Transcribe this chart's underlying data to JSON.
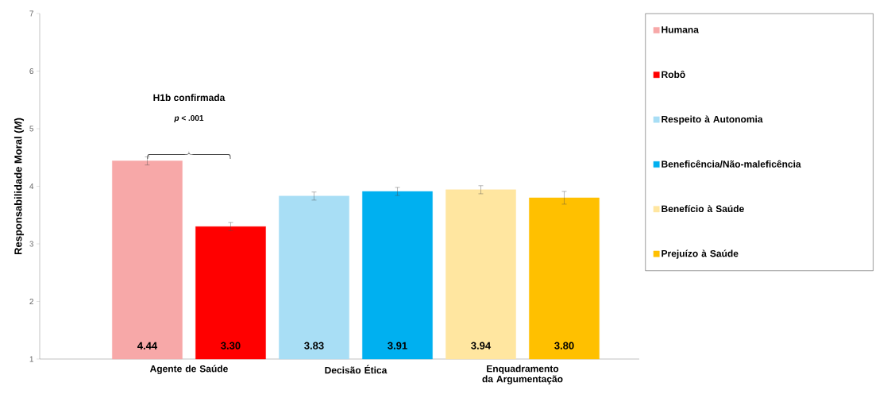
{
  "chart_data": {
    "type": "bar",
    "ylabel": "Responsabilidade Moral (*M*)",
    "categories": [
      "Agente de Saúde",
      "Decisão Ética",
      "Enquadramento da Argumentação"
    ],
    "ylim": [
      1,
      7
    ],
    "yticks": [
      1,
      2,
      3,
      4,
      5,
      6,
      7
    ],
    "grid": false,
    "legend": "right",
    "series": [
      {
        "name": "Humana",
        "color": "#f7a8a8",
        "values": [
          4.44,
          null,
          null
        ],
        "errors": [
          0.07,
          null,
          null
        ],
        "value_labels": [
          "4.44",
          null,
          null
        ]
      },
      {
        "name": "Robô",
        "color": "#ff0000",
        "values": [
          3.3,
          null,
          null
        ],
        "errors": [
          0.07,
          null,
          null
        ],
        "value_labels": [
          "3.30",
          null,
          null
        ]
      },
      {
        "name": "Respeito à Autonomia",
        "color": "#a8def5",
        "values": [
          null,
          3.83,
          null
        ],
        "errors": [
          null,
          0.07,
          null
        ],
        "value_labels": [
          null,
          "3.83",
          null
        ]
      },
      {
        "name": "Beneficência/Não-maleficência",
        "color": "#00b0f0",
        "values": [
          null,
          3.91,
          null
        ],
        "errors": [
          null,
          0.07,
          null
        ],
        "value_labels": [
          null,
          "3.91",
          null
        ]
      },
      {
        "name": "Benefício à Saúde",
        "color": "#ffe6a0",
        "values": [
          null,
          null,
          3.94
        ],
        "errors": [
          null,
          null,
          0.07
        ],
        "value_labels": [
          null,
          null,
          "3.94"
        ]
      },
      {
        "name": "Prejuízo à Saúde",
        "color": "#ffc000",
        "values": [
          null,
          null,
          3.8
        ],
        "errors": [
          null,
          null,
          0.11
        ],
        "value_labels": [
          null,
          null,
          "3.80"
        ]
      }
    ],
    "annotations": [
      "H1b confirmada",
      "*p* < .001"
    ]
  }
}
